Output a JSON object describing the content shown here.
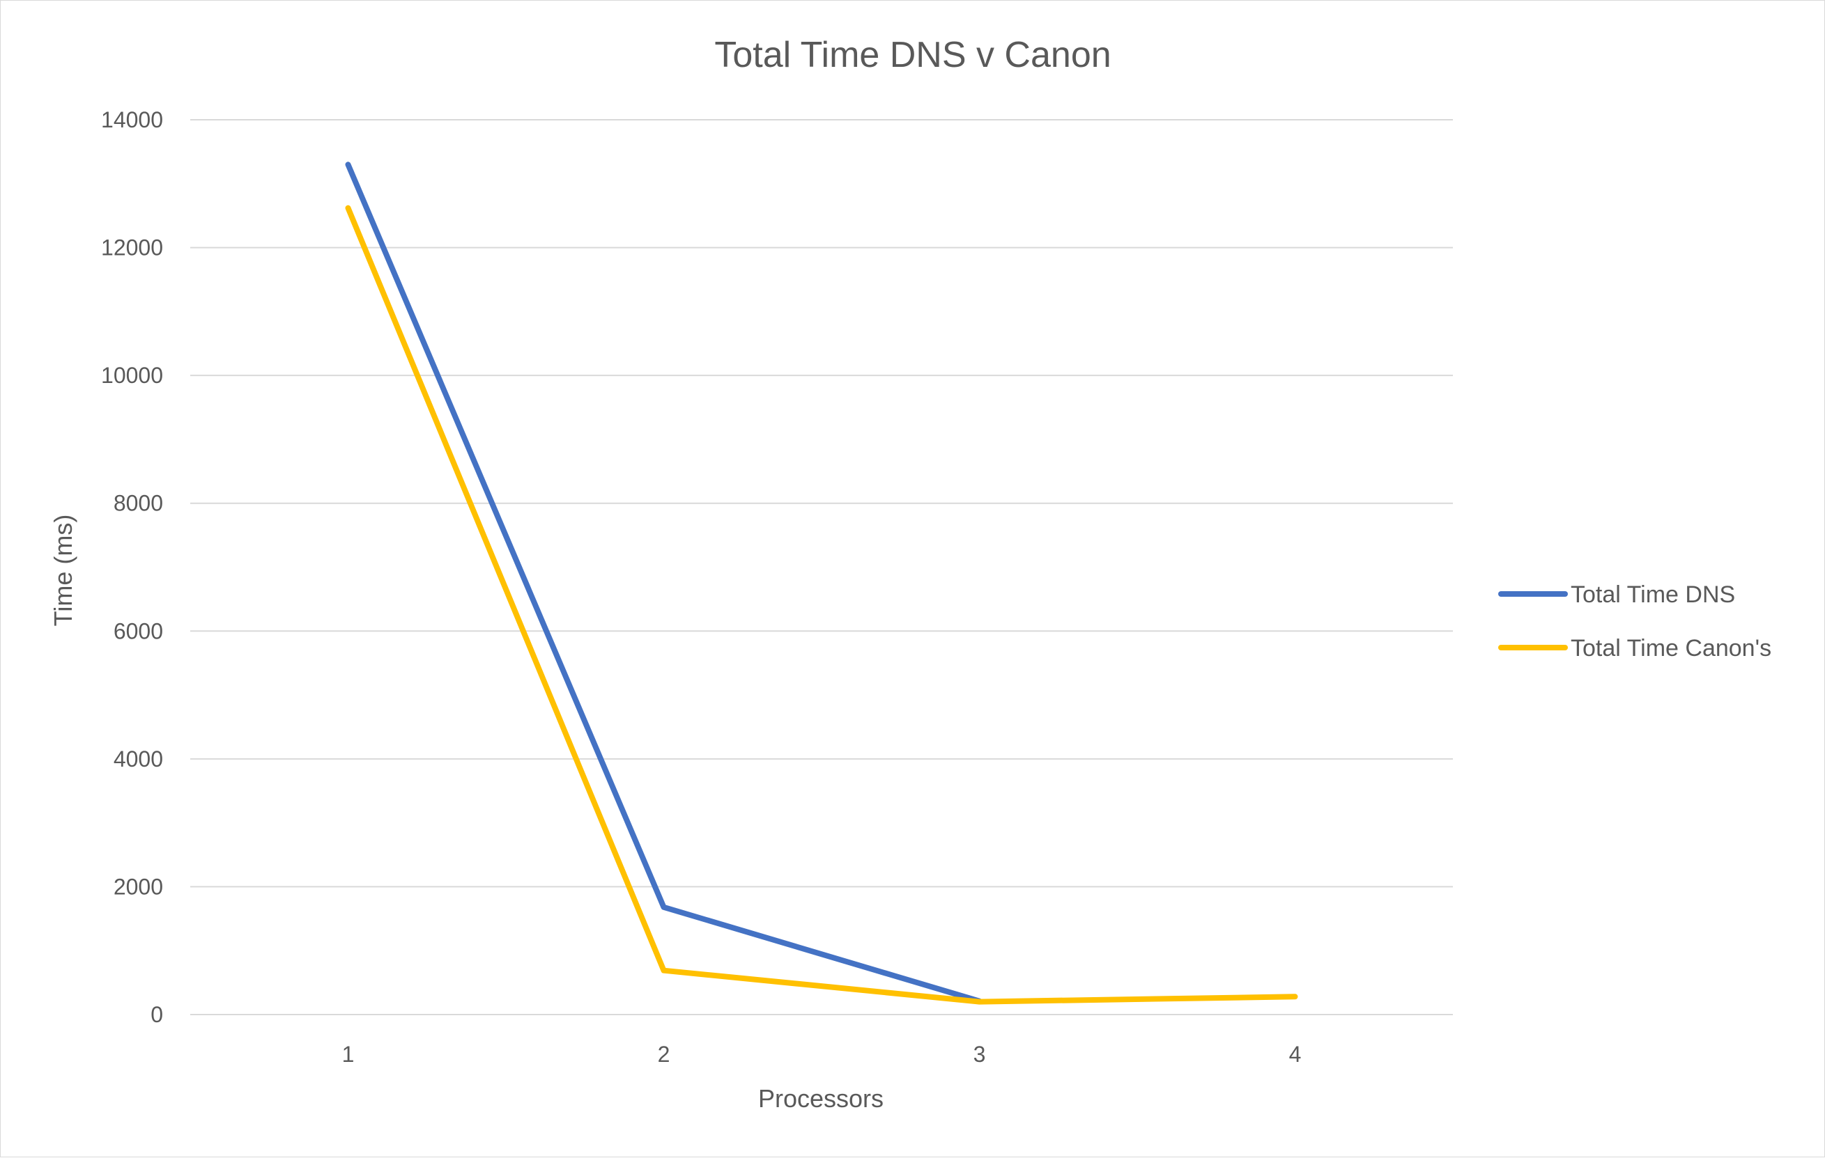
{
  "chart_data": {
    "type": "line",
    "title": "Total Time DNS v Canon",
    "xlabel": "Processors",
    "ylabel": "Time (ms)",
    "categories": [
      "1",
      "2",
      "3",
      "4"
    ],
    "ylim": [
      0,
      14000
    ],
    "yticks": [
      0,
      2000,
      4000,
      6000,
      8000,
      10000,
      12000,
      14000
    ],
    "ytick_labels": [
      "0",
      "2000",
      "4000",
      "6000",
      "8000",
      "10000",
      "12000",
      "14000"
    ],
    "grid": true,
    "legend_position": "right",
    "series": [
      {
        "name": "Total Time DNS",
        "color": "#4472C4",
        "values": [
          13300,
          1680,
          210,
          null
        ]
      },
      {
        "name": "Total Time Canon's",
        "color": "#FFC000",
        "values": [
          12620,
          690,
          200,
          280
        ]
      }
    ]
  }
}
